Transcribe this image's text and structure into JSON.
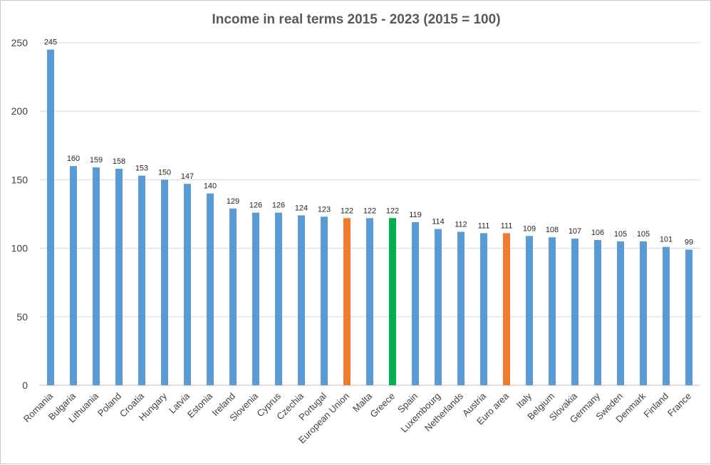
{
  "chart_data": {
    "type": "bar",
    "title": "Income in real terms 2015 - 2023 (2015 = 100)",
    "xlabel": "",
    "ylabel": "",
    "ylim": [
      0,
      250
    ],
    "yticks": [
      0,
      50,
      100,
      150,
      200,
      250
    ],
    "grid": true,
    "categories": [
      "Romania",
      "Bulgaria",
      "Lithuania",
      "Poland",
      "Croatia",
      "Hungary",
      "Latvia",
      "Estonia",
      "Ireland",
      "Slovenia",
      "Cyprus",
      "Czechia",
      "Portugal",
      "European Union",
      "Malta",
      "Greece",
      "Spain",
      "Luxembourg",
      "Netherlands",
      "Austria",
      "Euro area",
      "Italy",
      "Belgium",
      "Slovakia",
      "Germany",
      "Sweden",
      "Denmark",
      "Finland",
      "France"
    ],
    "values": [
      245,
      160,
      159,
      158,
      153,
      150,
      147,
      140,
      129,
      126,
      126,
      124,
      123,
      122,
      122,
      122,
      119,
      114,
      112,
      111,
      111,
      109,
      108,
      107,
      106,
      105,
      105,
      101,
      99
    ],
    "colors": {
      "default": "#5b9bd5",
      "highlight": "#ed7d31",
      "focus": "#00b050",
      "gridline": "#d9d9d9"
    },
    "bar_colors": [
      "default",
      "default",
      "default",
      "default",
      "default",
      "default",
      "default",
      "default",
      "default",
      "default",
      "default",
      "default",
      "default",
      "highlight",
      "default",
      "focus",
      "default",
      "default",
      "default",
      "default",
      "highlight",
      "default",
      "default",
      "default",
      "default",
      "default",
      "default",
      "default",
      "default"
    ]
  }
}
